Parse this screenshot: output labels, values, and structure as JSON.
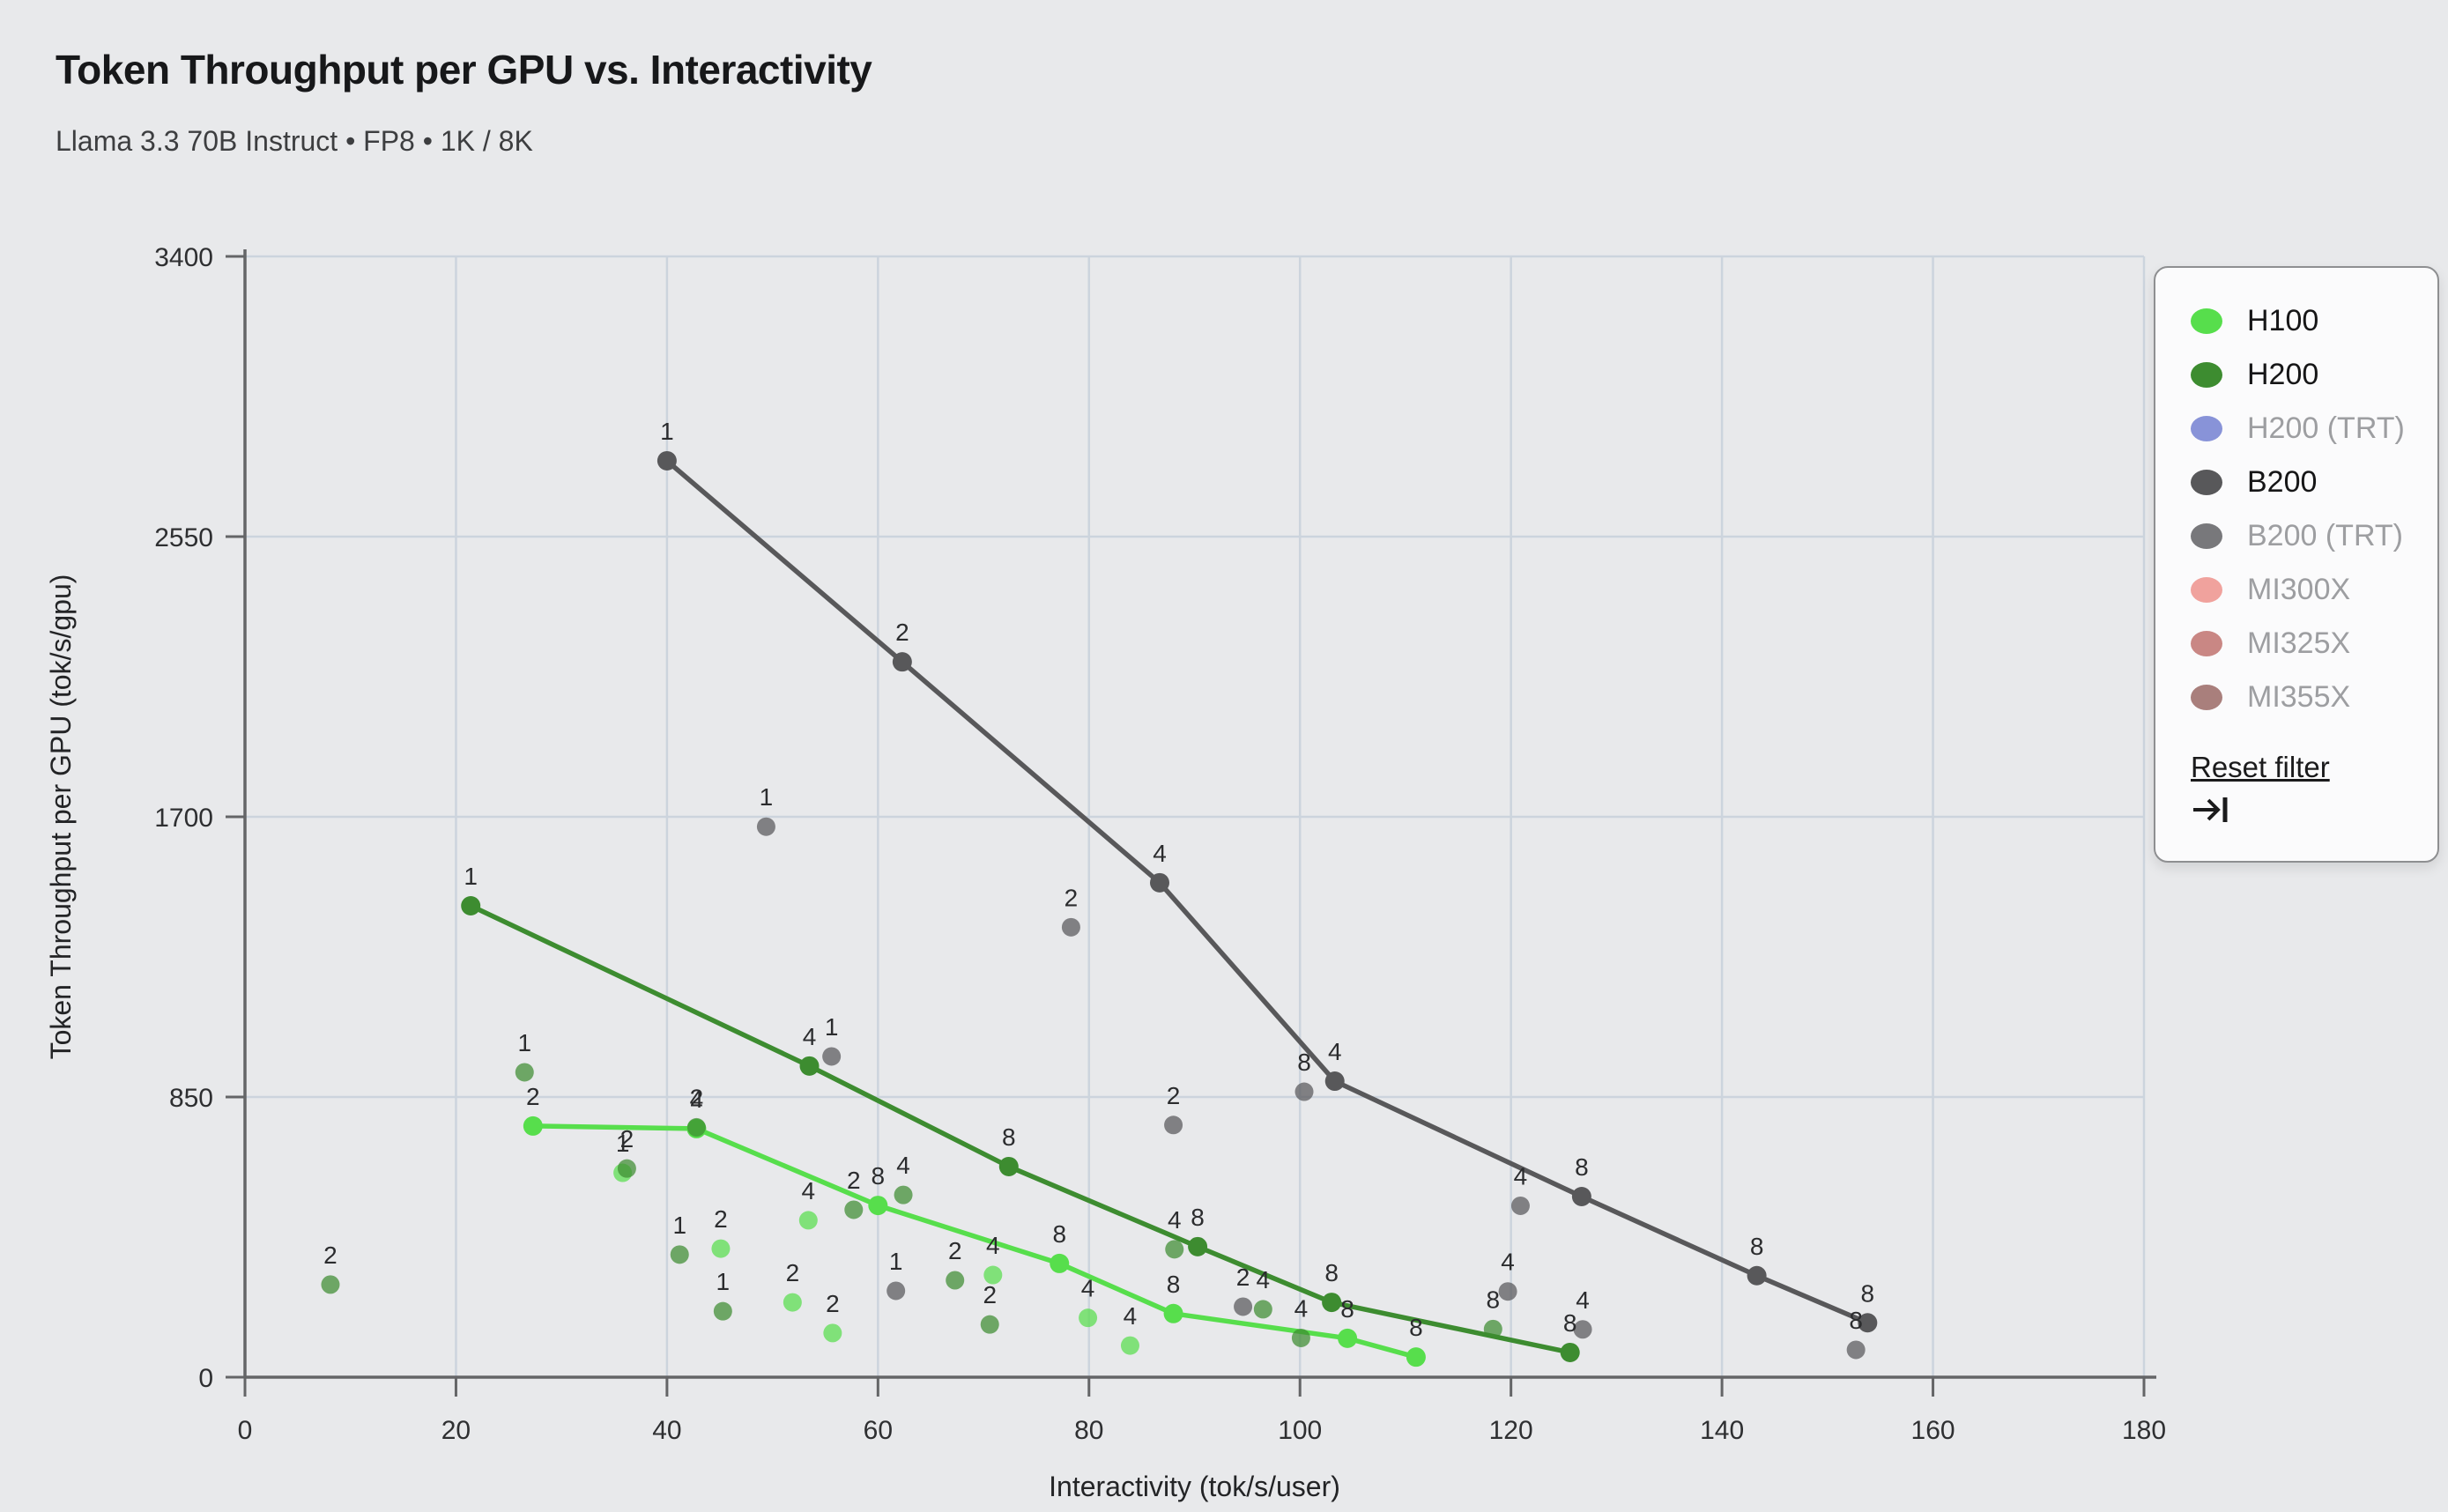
{
  "page": {
    "title": "Token Throughput per GPU vs. Interactivity",
    "subtitle": "Llama 3.3 70B Instruct • FP8 • 1K / 8K"
  },
  "chart_data": {
    "type": "scatter",
    "title": "Token Throughput per GPU vs. Interactivity",
    "subtitle": "Llama 3.3 70B Instruct • FP8 • 1K / 8K",
    "xlabel": "Interactivity (tok/s/user)",
    "ylabel": "Token Throughput per GPU (tok/s/gpu)",
    "xlim": [
      0,
      180
    ],
    "ylim": [
      0,
      3400
    ],
    "xticks": [
      0,
      20,
      40,
      60,
      80,
      100,
      120,
      140,
      160,
      180
    ],
    "yticks": [
      0,
      850,
      1700,
      2550,
      3400
    ],
    "grid": true,
    "point_label_meaning": "GPU count per configuration",
    "series": [
      {
        "name": "H100",
        "color": "#57DE4C",
        "active": true,
        "line": [
          {
            "x": 27.3,
            "y": 762,
            "label": "2"
          },
          {
            "x": 42.8,
            "y": 754,
            "label": "4"
          },
          {
            "x": 60.0,
            "y": 521,
            "label": "8"
          },
          {
            "x": 77.2,
            "y": 345,
            "label": "8"
          },
          {
            "x": 88.0,
            "y": 193,
            "label": "8"
          },
          {
            "x": 104.5,
            "y": 118,
            "label": "8"
          },
          {
            "x": 111.0,
            "y": 61,
            "label": "8"
          }
        ],
        "scatter": [
          {
            "x": 35.8,
            "y": 620,
            "label": "1"
          },
          {
            "x": 45.1,
            "y": 390,
            "label": "2"
          },
          {
            "x": 51.9,
            "y": 227,
            "label": "2"
          },
          {
            "x": 55.7,
            "y": 134,
            "label": "2"
          },
          {
            "x": 53.4,
            "y": 476,
            "label": "4"
          },
          {
            "x": 70.9,
            "y": 310,
            "label": "4"
          },
          {
            "x": 79.9,
            "y": 180,
            "label": "4"
          },
          {
            "x": 83.9,
            "y": 96,
            "label": "4"
          }
        ]
      },
      {
        "name": "H200",
        "color": "#3D8C30",
        "active": true,
        "line": [
          {
            "x": 21.4,
            "y": 1430,
            "label": "1"
          },
          {
            "x": 53.5,
            "y": 944,
            "label": "4"
          },
          {
            "x": 72.4,
            "y": 639,
            "label": "8"
          },
          {
            "x": 90.3,
            "y": 396,
            "label": "8"
          },
          {
            "x": 103.0,
            "y": 227,
            "label": "8"
          },
          {
            "x": 125.6,
            "y": 75,
            "label": "8"
          }
        ],
        "scatter": [
          {
            "x": 8.1,
            "y": 281,
            "label": "2"
          },
          {
            "x": 26.5,
            "y": 925,
            "label": "1"
          },
          {
            "x": 36.2,
            "y": 633,
            "label": "2"
          },
          {
            "x": 42.8,
            "y": 758,
            "label": "2"
          },
          {
            "x": 41.2,
            "y": 372,
            "label": "1"
          },
          {
            "x": 45.3,
            "y": 200,
            "label": "1"
          },
          {
            "x": 57.7,
            "y": 508,
            "label": "2"
          },
          {
            "x": 62.4,
            "y": 553,
            "label": "4"
          },
          {
            "x": 67.3,
            "y": 294,
            "label": "2"
          },
          {
            "x": 70.6,
            "y": 160,
            "label": "2"
          },
          {
            "x": 88.1,
            "y": 388,
            "label": "4"
          },
          {
            "x": 96.5,
            "y": 206,
            "label": "4"
          },
          {
            "x": 100.1,
            "y": 119,
            "label": "4"
          },
          {
            "x": 118.3,
            "y": 146,
            "label": "8"
          }
        ]
      },
      {
        "name": "H200 (TRT)",
        "color": "#8893D8",
        "active": false,
        "line": [],
        "scatter": []
      },
      {
        "name": "B200",
        "color": "#58585A",
        "active": true,
        "line": [
          {
            "x": 40.0,
            "y": 2780,
            "label": "1"
          },
          {
            "x": 62.3,
            "y": 2170,
            "label": "2"
          },
          {
            "x": 86.7,
            "y": 1500,
            "label": "4"
          },
          {
            "x": 103.3,
            "y": 898,
            "label": "4"
          },
          {
            "x": 126.7,
            "y": 548,
            "label": "8"
          },
          {
            "x": 143.3,
            "y": 308,
            "label": "8"
          },
          {
            "x": 153.8,
            "y": 165,
            "label": "8"
          }
        ],
        "scatter": [
          {
            "x": 49.4,
            "y": 1670,
            "label": "1"
          },
          {
            "x": 55.6,
            "y": 973,
            "label": "1"
          },
          {
            "x": 61.7,
            "y": 262,
            "label": "1"
          },
          {
            "x": 78.3,
            "y": 1365,
            "label": "2"
          },
          {
            "x": 88.0,
            "y": 765,
            "label": "2"
          },
          {
            "x": 94.6,
            "y": 214,
            "label": "2"
          },
          {
            "x": 100.4,
            "y": 866,
            "label": "8"
          },
          {
            "x": 120.9,
            "y": 520,
            "label": "4"
          },
          {
            "x": 119.7,
            "y": 260,
            "label": "4"
          },
          {
            "x": 126.8,
            "y": 145,
            "label": "4"
          },
          {
            "x": 152.7,
            "y": 83,
            "label": "8"
          }
        ]
      },
      {
        "name": "B200 (TRT)",
        "color": "#78787B",
        "active": false,
        "line": [],
        "scatter": []
      },
      {
        "name": "MI300X",
        "color": "#F0A29D",
        "active": false,
        "line": [],
        "scatter": []
      },
      {
        "name": "MI325X",
        "color": "#C98784",
        "active": false,
        "line": [],
        "scatter": []
      },
      {
        "name": "MI355X",
        "color": "#A97F7C",
        "active": false,
        "line": [],
        "scatter": []
      }
    ],
    "legend": {
      "position": "top-right",
      "reset_label": "Reset filter",
      "reset_icon": "arrow-to-bar"
    },
    "style": {
      "background": "#e8e9eb",
      "gridline_color": "#ccd4dd",
      "axis_color": "#646567",
      "tick_label_color": "#2e2f31",
      "point_label_color": "#2b2c2e",
      "active_legend_text": "#161617",
      "inactive_legend_text": "#9d9ea1"
    }
  }
}
